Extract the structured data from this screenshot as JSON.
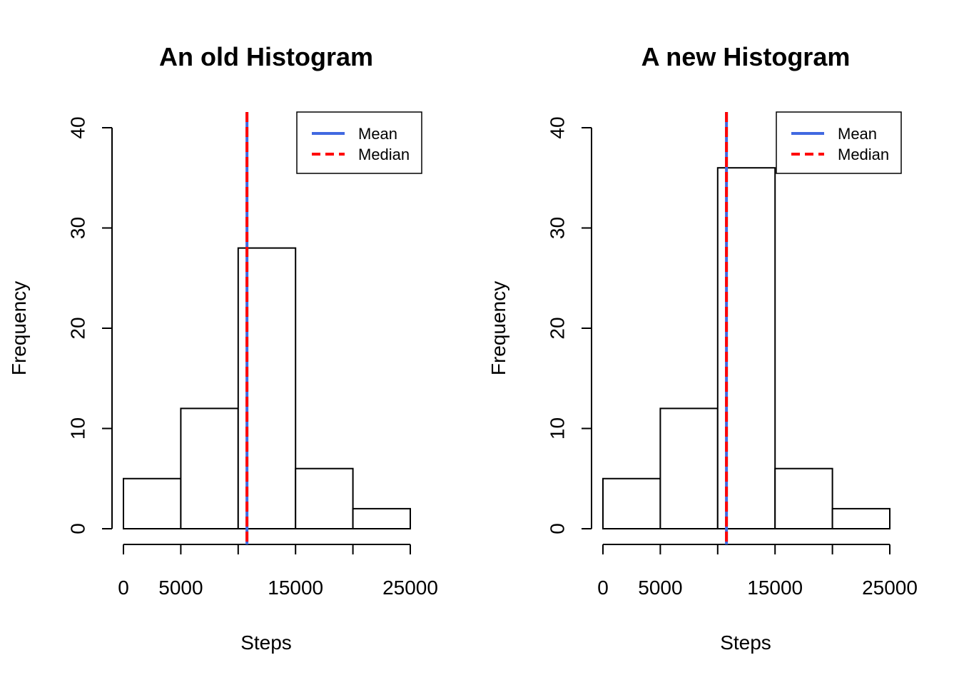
{
  "chart_data": [
    {
      "type": "bar",
      "title": "An old Histogram",
      "xlabel": "Steps",
      "ylabel": "Frequency",
      "bins": [
        [
          0,
          5000
        ],
        [
          5000,
          10000
        ],
        [
          10000,
          15000
        ],
        [
          15000,
          20000
        ],
        [
          20000,
          25000
        ]
      ],
      "values": [
        5,
        12,
        28,
        6,
        2
      ],
      "xlim": [
        0,
        25000
      ],
      "ylim": [
        0,
        40
      ],
      "x_ticks": [
        0,
        5000,
        10000,
        15000,
        20000,
        25000
      ],
      "x_tick_labels": [
        "0",
        "5000",
        "",
        "15000",
        "",
        "25000"
      ],
      "y_ticks": [
        0,
        10,
        20,
        30,
        40
      ],
      "y_tick_labels": [
        "0",
        "10",
        "20",
        "30",
        "40"
      ],
      "lines": [
        {
          "name": "Mean",
          "x": 10766,
          "color": "#4169E1",
          "style": "solid"
        },
        {
          "name": "Median",
          "x": 10765,
          "color": "#FF0000",
          "style": "dashed"
        }
      ],
      "legend": {
        "position": "top-right",
        "entries": [
          "Mean",
          "Median"
        ]
      },
      "grid": false
    },
    {
      "type": "bar",
      "title": "A new Histogram",
      "xlabel": "Steps",
      "ylabel": "Frequency",
      "bins": [
        [
          0,
          5000
        ],
        [
          5000,
          10000
        ],
        [
          10000,
          15000
        ],
        [
          15000,
          20000
        ],
        [
          20000,
          25000
        ]
      ],
      "values": [
        5,
        12,
        36,
        6,
        2
      ],
      "xlim": [
        0,
        25000
      ],
      "ylim": [
        0,
        40
      ],
      "x_ticks": [
        0,
        5000,
        10000,
        15000,
        20000,
        25000
      ],
      "x_tick_labels": [
        "0",
        "5000",
        "",
        "15000",
        "",
        "25000"
      ],
      "y_ticks": [
        0,
        10,
        20,
        30,
        40
      ],
      "y_tick_labels": [
        "0",
        "10",
        "20",
        "30",
        "40"
      ],
      "lines": [
        {
          "name": "Mean",
          "x": 10766,
          "color": "#4169E1",
          "style": "solid"
        },
        {
          "name": "Median",
          "x": 10766,
          "color": "#FF0000",
          "style": "dashed"
        }
      ],
      "legend": {
        "position": "top-right",
        "entries": [
          "Mean",
          "Median"
        ]
      },
      "grid": false
    }
  ]
}
